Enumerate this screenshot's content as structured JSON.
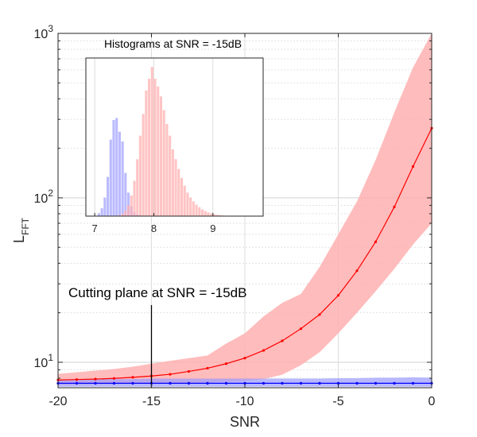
{
  "chart_data": {
    "type": "area",
    "xlabel": "SNR",
    "ylabel": "L",
    "ylabel_subscript": "FFT",
    "xlim": [
      -20,
      0
    ],
    "ylim": [
      7,
      1000
    ],
    "yscale": "log",
    "grid": true,
    "x_ticks": [
      "-20",
      "-15",
      "-10",
      "-5",
      "0"
    ],
    "y_ticks": [
      {
        "value": 10,
        "base": "10",
        "exp": "1"
      },
      {
        "value": 100,
        "base": "10",
        "exp": "2"
      },
      {
        "value": 1000,
        "base": "10",
        "exp": "3"
      }
    ],
    "series": [
      {
        "color": "#ff0000",
        "band_color": "#ffb0b0",
        "x": [
          -20,
          -19,
          -18,
          -17,
          -16,
          -15,
          -14,
          -13,
          -12,
          -11,
          -10,
          -9,
          -8,
          -7,
          -6,
          -5,
          -4,
          -3,
          -2,
          -1,
          0
        ],
        "median": [
          7.8,
          7.85,
          7.9,
          7.98,
          8.1,
          8.25,
          8.45,
          8.8,
          9.2,
          9.8,
          10.6,
          11.8,
          13.5,
          16,
          19.5,
          25.5,
          36,
          54,
          88,
          155,
          265
        ],
        "lower": [
          7.3,
          7.3,
          7.35,
          7.35,
          7.4,
          7.4,
          7.45,
          7.5,
          7.55,
          7.6,
          7.7,
          7.9,
          8.4,
          9.6,
          11.5,
          15,
          20,
          27,
          37,
          52,
          70
        ],
        "upper": [
          8.5,
          8.7,
          8.9,
          9.1,
          9.4,
          9.8,
          10.2,
          10.6,
          11,
          13,
          15,
          19,
          23,
          26,
          38,
          60,
          95,
          170,
          330,
          620,
          1000
        ]
      },
      {
        "color": "#0000ff",
        "band_color": "#9a9aff",
        "x": [
          -20,
          -19,
          -18,
          -17,
          -16,
          -15,
          -14,
          -13,
          -12,
          -11,
          -10,
          -9,
          -8,
          -7,
          -6,
          -5,
          -4,
          -3,
          -2,
          -1,
          0
        ],
        "median": [
          7.45,
          7.45,
          7.45,
          7.45,
          7.45,
          7.45,
          7.45,
          7.45,
          7.45,
          7.45,
          7.45,
          7.45,
          7.45,
          7.45,
          7.45,
          7.45,
          7.45,
          7.45,
          7.45,
          7.45,
          7.45
        ],
        "lower": [
          7.1,
          7.1,
          7.1,
          7.1,
          7.1,
          7.1,
          7.1,
          7.1,
          7.1,
          7.1,
          7.1,
          7.1,
          7.1,
          7.1,
          7.1,
          7.1,
          7.1,
          7.1,
          7.1,
          7.1,
          7.1
        ],
        "upper": [
          7.8,
          7.8,
          7.85,
          7.9,
          7.9,
          7.95,
          7.95,
          7.95,
          7.95,
          7.95,
          7.95,
          7.95,
          7.95,
          7.95,
          7.95,
          8,
          8,
          8.05,
          8.05,
          8.1,
          8.05
        ]
      }
    ],
    "annotation": {
      "text": "Cutting plane at SNR = -15dB",
      "x": -15
    },
    "inset": {
      "type": "histogram",
      "title": "Histograms at SNR = -15dB",
      "xlim": [
        6.85,
        9.85
      ],
      "x_ticks": [
        "7",
        "8",
        "9"
      ],
      "grid": true,
      "bin_width": 0.05,
      "blue": {
        "color": "#aaaaff",
        "start": 7.05,
        "counts": [
          15,
          40,
          95,
          200,
          390,
          490,
          500,
          430,
          380,
          220,
          120,
          50,
          20,
          8,
          3
        ]
      },
      "red": {
        "color": "#ffb0b0",
        "start": 7.4,
        "counts": [
          5,
          12,
          28,
          55,
          105,
          180,
          290,
          410,
          520,
          640,
          700,
          760,
          700,
          660,
          610,
          540,
          470,
          410,
          340,
          290,
          240,
          195,
          155,
          120,
          95,
          75,
          58,
          45,
          34,
          26,
          19,
          14,
          10,
          7,
          5,
          3,
          2,
          1
        ]
      }
    }
  }
}
